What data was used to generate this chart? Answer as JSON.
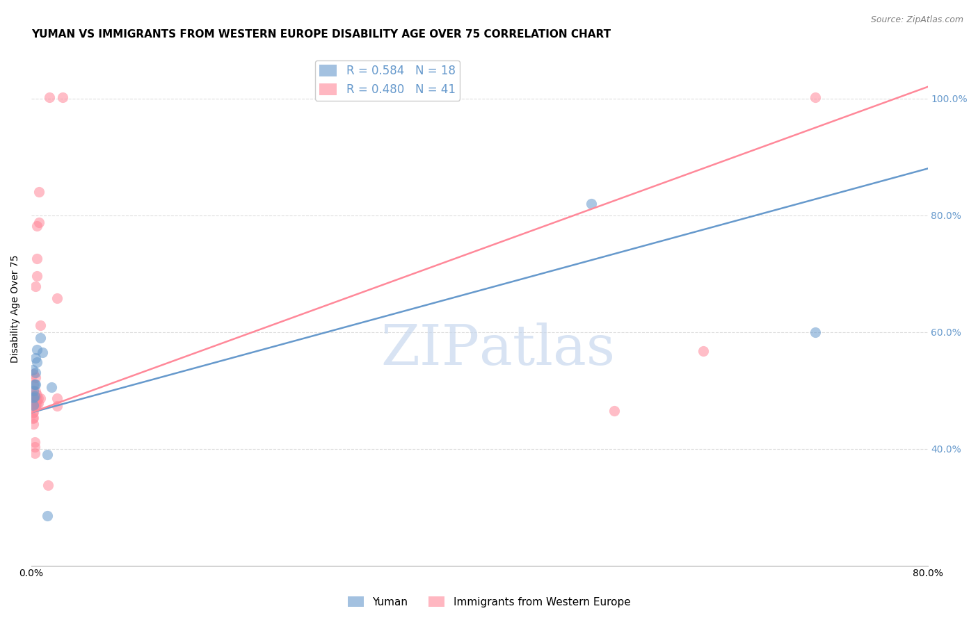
{
  "title": "YUMAN VS IMMIGRANTS FROM WESTERN EUROPE DISABILITY AGE OVER 75 CORRELATION CHART",
  "source": "Source: ZipAtlas.com",
  "ylabel": "Disability Age Over 75",
  "xlim": [
    0.0,
    0.8
  ],
  "ylim": [
    0.2,
    1.08
  ],
  "yticks": [
    0.4,
    0.6,
    0.8,
    1.0
  ],
  "ytick_labels": [
    "40.0%",
    "60.0%",
    "80.0%",
    "100.0%"
  ],
  "watermark": "ZIPatlas",
  "legend_blue_R": "R = 0.584",
  "legend_blue_N": "N = 18",
  "legend_pink_R": "R = 0.480",
  "legend_pink_N": "N = 41",
  "legend_label_blue": "Yuman",
  "legend_label_pink": "Immigrants from Western Europe",
  "blue_color": "#6699CC",
  "pink_color": "#FF8899",
  "blue_scatter": [
    [
      0.001,
      0.535
    ],
    [
      0.002,
      0.5
    ],
    [
      0.002,
      0.488
    ],
    [
      0.002,
      0.475
    ],
    [
      0.003,
      0.51
    ],
    [
      0.003,
      0.49
    ],
    [
      0.004,
      0.555
    ],
    [
      0.004,
      0.53
    ],
    [
      0.004,
      0.51
    ],
    [
      0.005,
      0.57
    ],
    [
      0.005,
      0.548
    ],
    [
      0.008,
      0.59
    ],
    [
      0.01,
      0.565
    ],
    [
      0.018,
      0.505
    ],
    [
      0.014,
      0.39
    ],
    [
      0.014,
      0.285
    ],
    [
      0.5,
      0.82
    ],
    [
      0.7,
      0.6
    ]
  ],
  "pink_scatter": [
    [
      0.001,
      0.49
    ],
    [
      0.001,
      0.475
    ],
    [
      0.001,
      0.462
    ],
    [
      0.001,
      0.452
    ],
    [
      0.002,
      0.528
    ],
    [
      0.002,
      0.51
    ],
    [
      0.002,
      0.492
    ],
    [
      0.002,
      0.478
    ],
    [
      0.002,
      0.463
    ],
    [
      0.002,
      0.453
    ],
    [
      0.002,
      0.442
    ],
    [
      0.003,
      0.412
    ],
    [
      0.003,
      0.403
    ],
    [
      0.003,
      0.392
    ],
    [
      0.004,
      0.678
    ],
    [
      0.004,
      0.522
    ],
    [
      0.004,
      0.498
    ],
    [
      0.004,
      0.488
    ],
    [
      0.004,
      0.478
    ],
    [
      0.004,
      0.472
    ],
    [
      0.005,
      0.782
    ],
    [
      0.005,
      0.726
    ],
    [
      0.005,
      0.696
    ],
    [
      0.005,
      0.493
    ],
    [
      0.005,
      0.485
    ],
    [
      0.005,
      0.477
    ],
    [
      0.006,
      0.487
    ],
    [
      0.006,
      0.478
    ],
    [
      0.007,
      0.84
    ],
    [
      0.007,
      0.788
    ],
    [
      0.008,
      0.612
    ],
    [
      0.008,
      0.487
    ],
    [
      0.015,
      0.338
    ],
    [
      0.023,
      0.658
    ],
    [
      0.023,
      0.487
    ],
    [
      0.023,
      0.473
    ],
    [
      0.6,
      0.568
    ],
    [
      0.52,
      0.465
    ],
    [
      0.7,
      1.002
    ],
    [
      0.016,
      1.002
    ],
    [
      0.028,
      1.002
    ]
  ],
  "blue_line_x": [
    0.0,
    0.8
  ],
  "blue_line_y": [
    0.462,
    0.88
  ],
  "pink_line_x": [
    0.0,
    0.8
  ],
  "pink_line_y": [
    0.462,
    1.02
  ],
  "background_color": "#ffffff",
  "grid_color": "#dddddd",
  "title_fontsize": 11,
  "axis_label_fontsize": 10,
  "tick_fontsize": 10,
  "legend_fontsize": 12
}
